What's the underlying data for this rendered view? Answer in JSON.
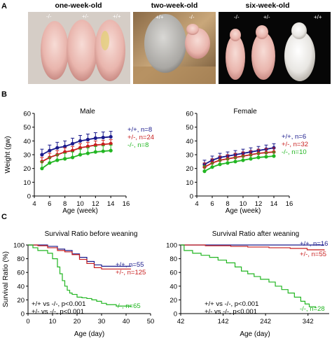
{
  "panel_labels": {
    "a": "A",
    "b": "B",
    "c": "C"
  },
  "photos": [
    {
      "title": "one-week-old",
      "genotypes": [
        "-/-",
        "+/-",
        "+/+"
      ]
    },
    {
      "title": "two-week-old",
      "genotypes": [
        "+/+",
        "-/-"
      ]
    },
    {
      "title": "six-week-old",
      "genotypes": [
        "-/-",
        "+/-",
        "+/+"
      ]
    }
  ],
  "colors": {
    "wt": "#1a1a8c",
    "het": "#c81e1e",
    "ko": "#22b622"
  },
  "chart_data": [
    {
      "type": "line",
      "title": "Male",
      "xlabel": "Age (week)",
      "ylabel": "Weight (gw)",
      "xlim": [
        4,
        16
      ],
      "ylim": [
        0,
        60
      ],
      "xticks": [
        4,
        6,
        8,
        10,
        12,
        14,
        16
      ],
      "yticks": [
        0,
        10,
        20,
        30,
        40,
        50,
        60
      ],
      "x": [
        5,
        6,
        7,
        8,
        9,
        10,
        11,
        12,
        13,
        14
      ],
      "series": [
        {
          "name": "+/+, n=8",
          "color": "#1a1a8c",
          "values": [
            30,
            33,
            35,
            36,
            38,
            40,
            41,
            42,
            42.5,
            43
          ],
          "errors": [
            4,
            4,
            4,
            4,
            4,
            4,
            4,
            4,
            4,
            4
          ]
        },
        {
          "name": "+/-, n=24",
          "color": "#c81e1e",
          "values": [
            25,
            28,
            30,
            32,
            33,
            35,
            36,
            37,
            37.5,
            38
          ],
          "errors": [
            3,
            3,
            3,
            3,
            3,
            3,
            3,
            3,
            3,
            3
          ]
        },
        {
          "name": "-/-, n=8",
          "color": "#22b622",
          "values": [
            20,
            24,
            26,
            27,
            28,
            30,
            31,
            32,
            32.5,
            33
          ],
          "errors": [
            5,
            4,
            4,
            4,
            4,
            4,
            4,
            4,
            4,
            4
          ]
        }
      ]
    },
    {
      "type": "line",
      "title": "Female",
      "xlabel": "Age (week)",
      "ylabel": "",
      "xlim": [
        4,
        16
      ],
      "ylim": [
        0,
        60
      ],
      "xticks": [
        4,
        6,
        8,
        10,
        12,
        14,
        16
      ],
      "yticks": [
        0,
        10,
        20,
        30,
        40,
        50,
        60
      ],
      "x": [
        5,
        6,
        7,
        8,
        9,
        10,
        11,
        12,
        13,
        14
      ],
      "series": [
        {
          "name": "+/+, n=6",
          "color": "#1a1a8c",
          "values": [
            23,
            26,
            28,
            29,
            30,
            31,
            32,
            33,
            34,
            35
          ],
          "errors": [
            3,
            3,
            3,
            3,
            3,
            3,
            3,
            3,
            3,
            3
          ]
        },
        {
          "name": "+/-, n=32",
          "color": "#c81e1e",
          "values": [
            21,
            24,
            26,
            27,
            28,
            29,
            30,
            31,
            31.5,
            32
          ],
          "errors": [
            3,
            3,
            3,
            3,
            3,
            3,
            3,
            3,
            3,
            3
          ]
        },
        {
          "name": "-/-, n=10",
          "color": "#22b622",
          "values": [
            18,
            21,
            23,
            24,
            25,
            26,
            27,
            28,
            28.5,
            29
          ],
          "errors": [
            4,
            3,
            3,
            3,
            3,
            3,
            3,
            3,
            3,
            3
          ]
        }
      ]
    },
    {
      "type": "line",
      "title": "Survival Ratio before weaning",
      "xlabel": "Age (day)",
      "ylabel": "Survival Ratio (%)",
      "xlim": [
        0,
        50
      ],
      "ylim": [
        0,
        100
      ],
      "xticks": [
        0,
        10,
        20,
        30,
        40,
        50
      ],
      "yticks": [
        0,
        20,
        40,
        60,
        80,
        100
      ],
      "series": [
        {
          "name": "+/+, n=55",
          "color": "#1a1a8c",
          "points": [
            [
              0,
              100
            ],
            [
              6,
              100
            ],
            [
              8,
              98
            ],
            [
              12,
              94
            ],
            [
              15,
              92
            ],
            [
              18,
              87
            ],
            [
              21,
              82
            ],
            [
              24,
              76
            ],
            [
              27,
              71
            ],
            [
              30,
              69
            ],
            [
              42,
              69
            ]
          ]
        },
        {
          "name": "+/-, n=125",
          "color": "#c81e1e",
          "points": [
            [
              0,
              100
            ],
            [
              4,
              99
            ],
            [
              8,
              96
            ],
            [
              12,
              92
            ],
            [
              15,
              90
            ],
            [
              18,
              86
            ],
            [
              21,
              79
            ],
            [
              24,
              73
            ],
            [
              27,
              67
            ],
            [
              30,
              65
            ],
            [
              42,
              65
            ]
          ]
        },
        {
          "name": "-/-, n=65",
          "color": "#22b622",
          "points": [
            [
              0,
              100
            ],
            [
              2,
              96
            ],
            [
              4,
              92
            ],
            [
              6,
              92
            ],
            [
              8,
              88
            ],
            [
              10,
              80
            ],
            [
              12,
              68
            ],
            [
              13,
              58
            ],
            [
              14,
              48
            ],
            [
              15,
              40
            ],
            [
              16,
              34
            ],
            [
              17,
              30
            ],
            [
              18,
              28
            ],
            [
              20,
              24
            ],
            [
              22,
              23
            ],
            [
              24,
              22
            ],
            [
              26,
              20
            ],
            [
              28,
              18
            ],
            [
              30,
              15
            ],
            [
              32,
              13
            ],
            [
              36,
              11
            ],
            [
              42,
              10
            ]
          ]
        }
      ],
      "annotations": [
        "+/+ vs -/-, p<0.001",
        "+/- vs -/-, p<0.001"
      ]
    },
    {
      "type": "line",
      "title": "Survival Ratio after weaning",
      "xlabel": "Age (day)",
      "ylabel": "",
      "xlim": [
        42,
        392
      ],
      "ylim": [
        0,
        100
      ],
      "xticks": [
        42,
        142,
        242,
        342
      ],
      "yticks": [
        0,
        20,
        40,
        60,
        80,
        100
      ],
      "series": [
        {
          "name": "+/+, n=16",
          "color": "#1a1a8c",
          "points": [
            [
              42,
              100
            ],
            [
              380,
              100
            ]
          ]
        },
        {
          "name": "+/-, n=55",
          "color": "#c81e1e",
          "points": [
            [
              42,
              100
            ],
            [
              100,
              99
            ],
            [
              160,
              98
            ],
            [
              200,
              97
            ],
            [
              250,
              96
            ],
            [
              300,
              95
            ],
            [
              340,
              93
            ],
            [
              380,
              92
            ]
          ]
        },
        {
          "name": "-/-, n=28",
          "color": "#22b622",
          "points": [
            [
              42,
              100
            ],
            [
              50,
              92
            ],
            [
              70,
              88
            ],
            [
              90,
              85
            ],
            [
              110,
              82
            ],
            [
              130,
              78
            ],
            [
              150,
              74
            ],
            [
              170,
              68
            ],
            [
              185,
              62
            ],
            [
              200,
              58
            ],
            [
              215,
              54
            ],
            [
              230,
              50
            ],
            [
              250,
              46
            ],
            [
              265,
              40
            ],
            [
              280,
              35
            ],
            [
              295,
              30
            ],
            [
              310,
              24
            ],
            [
              325,
              18
            ],
            [
              335,
              14
            ],
            [
              345,
              10
            ],
            [
              360,
              8
            ]
          ]
        }
      ],
      "annotations": [
        "+/+ vs -/-, p<0.001",
        "+/- vs -/-, p<0.001"
      ]
    }
  ]
}
